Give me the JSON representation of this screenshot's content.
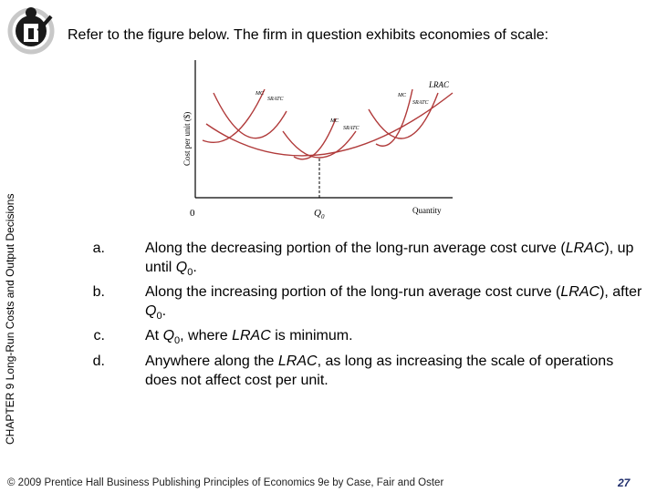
{
  "slide": {
    "question": "Refer to the figure below.  The firm in question exhibits economies of scale:",
    "side_label": "CHAPTER 9  Long-Run Costs and Output Decisions",
    "footer": "© 2009 Prentice Hall Business Publishing   Principles of Economics 9e by Case, Fair and Oster",
    "page_number": "27"
  },
  "figure": {
    "ylabel": "Cost per unit ($)",
    "xlabel": "Quantity",
    "origin_label": "0",
    "q0_label": "Q",
    "q0_sub": "0",
    "curve_labels": {
      "lrac": "LRAC",
      "mc1": "MC",
      "srac1": "SRATC",
      "mc2": "MC",
      "srac2": "SRATC",
      "mc3": "MC",
      "srac3": "SRATC"
    }
  },
  "options": [
    {
      "letter": "a.",
      "parts": [
        {
          "t": "Along the decreasing portion of the long-run average cost curve ("
        },
        {
          "t": "LRAC",
          "i": true
        },
        {
          "t": "), up until "
        },
        {
          "t": "Q",
          "i": true
        },
        {
          "t": "0",
          "sub": true
        },
        {
          "t": "."
        }
      ]
    },
    {
      "letter": "b.",
      "parts": [
        {
          "t": "Along the increasing portion of the long-run average cost curve ("
        },
        {
          "t": "LRAC",
          "i": true
        },
        {
          "t": "), after "
        },
        {
          "t": "Q",
          "i": true
        },
        {
          "t": "0",
          "sub": true
        },
        {
          "t": "."
        }
      ]
    },
    {
      "letter": "c.",
      "parts": [
        {
          "t": "At "
        },
        {
          "t": "Q",
          "i": true
        },
        {
          "t": "0",
          "sub": true
        },
        {
          "t": ", where "
        },
        {
          "t": "LRAC",
          "i": true
        },
        {
          "t": " is minimum."
        }
      ]
    },
    {
      "letter": "d.",
      "parts": [
        {
          "t": "Anywhere along the "
        },
        {
          "t": "LRAC",
          "i": true
        },
        {
          "t": ", as long as increasing the scale of operations does not affect cost per unit."
        }
      ]
    }
  ]
}
